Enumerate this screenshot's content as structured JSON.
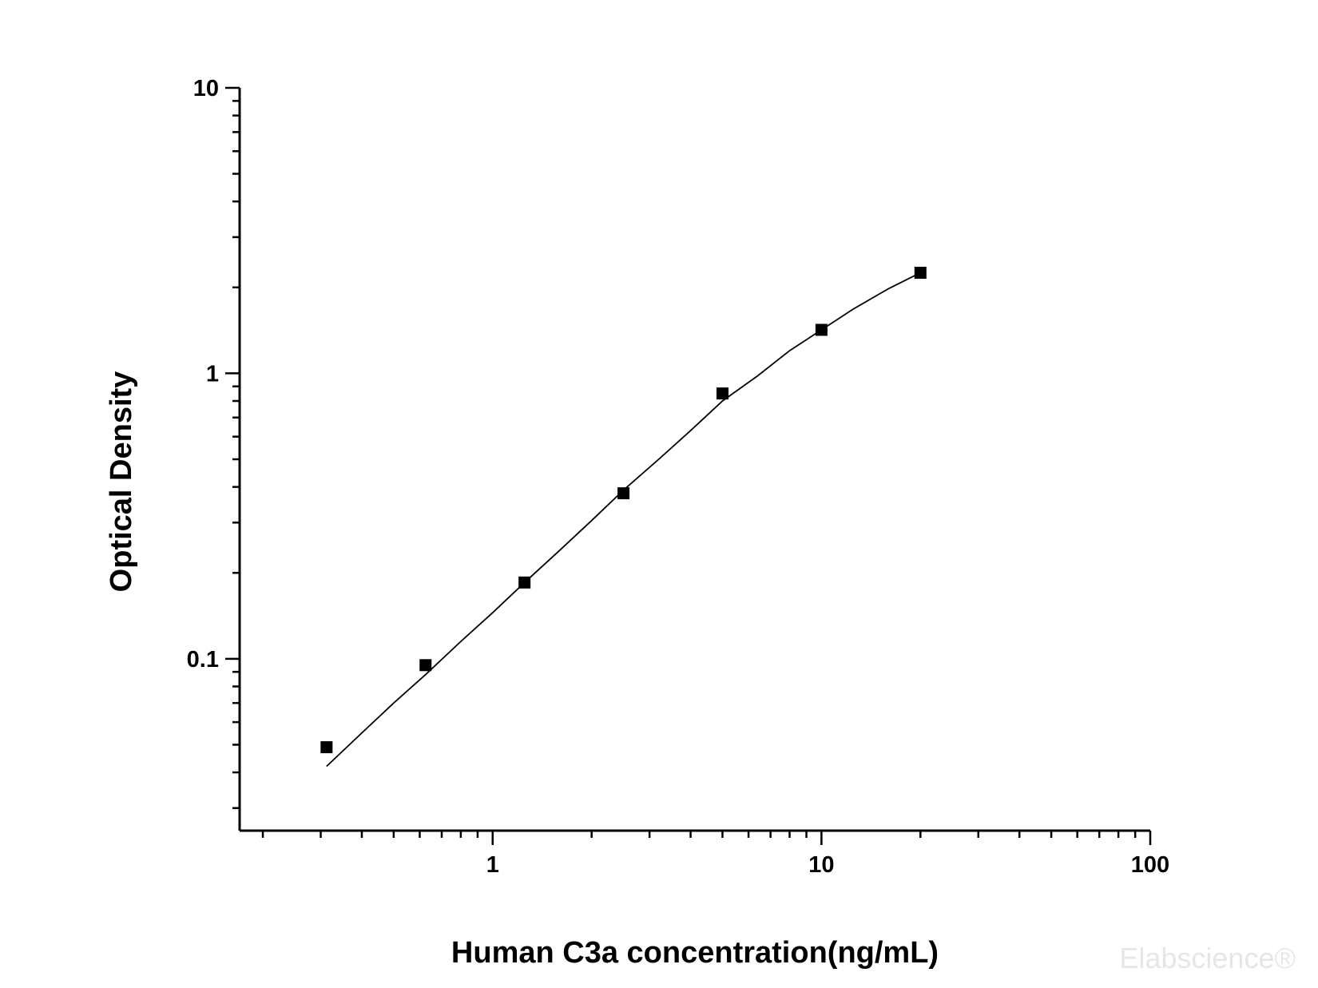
{
  "chart_data": {
    "type": "scatter",
    "xlabel": "Human C3a concentration(ng/mL)",
    "ylabel": "Optical Density",
    "x_scale": "log",
    "y_scale": "log",
    "xlim": [
      0.17,
      100
    ],
    "ylim": [
      0.025,
      10
    ],
    "x_ticks": [
      {
        "value": 1,
        "label": "1"
      },
      {
        "value": 10,
        "label": "10"
      },
      {
        "value": 100,
        "label": "100"
      }
    ],
    "y_ticks": [
      {
        "value": 0.1,
        "label": "0.1"
      },
      {
        "value": 1,
        "label": "1"
      },
      {
        "value": 10,
        "label": "10"
      }
    ],
    "grid": false,
    "marker": "square",
    "marker_color": "#000000",
    "line_color": "#000000",
    "series": [
      {
        "values": [
          {
            "x": 0.3125,
            "y": 0.049
          },
          {
            "x": 0.625,
            "y": 0.095
          },
          {
            "x": 1.25,
            "y": 0.185
          },
          {
            "x": 2.5,
            "y": 0.38
          },
          {
            "x": 5,
            "y": 0.85
          },
          {
            "x": 10,
            "y": 1.42
          },
          {
            "x": 20,
            "y": 2.25
          }
        ]
      }
    ],
    "fit_curve": {
      "type": "four-parameter logistic",
      "x": [
        0.3125,
        0.4,
        0.5,
        0.625,
        0.8,
        1,
        1.25,
        1.6,
        2,
        2.5,
        3.2,
        4,
        5,
        6.4,
        8,
        10,
        12.5,
        16,
        20
      ],
      "y": [
        0.042,
        0.055,
        0.07,
        0.088,
        0.115,
        0.145,
        0.185,
        0.24,
        0.305,
        0.39,
        0.5,
        0.63,
        0.8,
        0.98,
        1.2,
        1.42,
        1.68,
        1.98,
        2.25
      ]
    }
  },
  "watermark": "Elabscience®"
}
